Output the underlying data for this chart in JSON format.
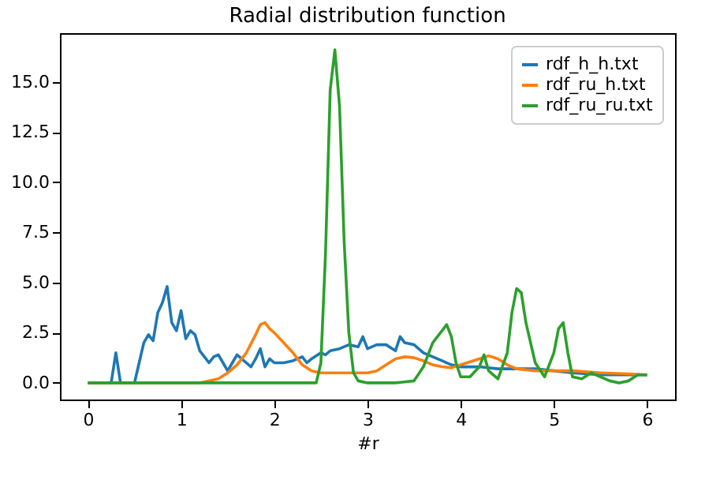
{
  "chart_data": {
    "type": "line",
    "title": "Radial distribution function",
    "xlabel": "#r",
    "xlim": [
      -0.3,
      6.3
    ],
    "ylim": [
      -0.83,
      17.43
    ],
    "xticks": [
      0,
      1,
      2,
      3,
      4,
      5,
      6
    ],
    "yticks": [
      {
        "value": 0,
        "label": "0.0"
      },
      {
        "value": 2.5,
        "label": "2.5"
      },
      {
        "value": 5,
        "label": "5.0"
      },
      {
        "value": 7.5,
        "label": "7.5"
      },
      {
        "value": 10,
        "label": "10.0"
      },
      {
        "value": 12.5,
        "label": "12.5"
      },
      {
        "value": 15,
        "label": "15.0"
      }
    ],
    "grid": false,
    "legend": "top right",
    "series": [
      {
        "name": "rdf_h_h.txt",
        "color": "#1f77b4",
        "x": [
          0,
          0.25,
          0.3,
          0.35,
          0.5,
          0.55,
          0.6,
          0.65,
          0.7,
          0.75,
          0.8,
          0.85,
          0.9,
          0.95,
          1.0,
          1.05,
          1.1,
          1.15,
          1.2,
          1.25,
          1.3,
          1.35,
          1.4,
          1.45,
          1.5,
          1.55,
          1.6,
          1.65,
          1.7,
          1.75,
          1.8,
          1.85,
          1.9,
          1.95,
          2.0,
          2.1,
          2.2,
          2.3,
          2.35,
          2.4,
          2.5,
          2.55,
          2.6,
          2.7,
          2.8,
          2.9,
          2.95,
          3.0,
          3.1,
          3.2,
          3.3,
          3.35,
          3.4,
          3.5,
          3.6,
          3.7,
          3.8,
          3.9,
          4.0,
          4.2,
          4.4,
          4.6,
          4.8,
          5.0,
          5.2,
          5.5,
          5.8,
          6.0
        ],
        "values": [
          0,
          0,
          1.5,
          0,
          0,
          1.0,
          2.0,
          2.4,
          2.1,
          3.5,
          4.0,
          4.8,
          3.0,
          2.6,
          3.6,
          2.2,
          2.6,
          2.4,
          1.6,
          1.3,
          1.0,
          1.3,
          1.4,
          1.0,
          0.6,
          1.0,
          1.4,
          1.2,
          1.0,
          0.8,
          1.2,
          1.7,
          0.8,
          1.2,
          1.0,
          1.0,
          1.1,
          1.3,
          1.0,
          1.2,
          1.5,
          1.4,
          1.6,
          1.7,
          1.9,
          1.8,
          2.3,
          1.7,
          1.9,
          1.9,
          1.6,
          2.3,
          2.0,
          1.9,
          1.5,
          1.3,
          1.1,
          0.9,
          0.8,
          0.8,
          0.7,
          0.7,
          0.7,
          0.6,
          0.5,
          0.4,
          0.4,
          0.4
        ]
      },
      {
        "name": "rdf_ru_h.txt",
        "color": "#ff7f0e",
        "x": [
          0,
          1.2,
          1.4,
          1.5,
          1.6,
          1.7,
          1.8,
          1.85,
          1.9,
          1.95,
          2.0,
          2.1,
          2.2,
          2.3,
          2.4,
          2.5,
          2.6,
          2.8,
          3.0,
          3.1,
          3.2,
          3.3,
          3.4,
          3.5,
          3.6,
          3.7,
          3.8,
          3.9,
          4.0,
          4.2,
          4.3,
          4.4,
          4.5,
          4.6,
          4.8,
          5.0,
          5.2,
          5.5,
          5.8,
          6.0
        ],
        "values": [
          0,
          0,
          0.2,
          0.5,
          0.9,
          1.5,
          2.4,
          2.9,
          3.0,
          2.7,
          2.5,
          2.0,
          1.5,
          0.9,
          0.6,
          0.5,
          0.5,
          0.5,
          0.5,
          0.6,
          0.9,
          1.2,
          1.3,
          1.25,
          1.1,
          0.9,
          0.8,
          0.75,
          0.9,
          1.2,
          1.35,
          1.2,
          0.9,
          0.7,
          0.6,
          0.6,
          0.6,
          0.5,
          0.45,
          0.4
        ]
      },
      {
        "name": "rdf_ru_ru.txt",
        "color": "#2ca02c",
        "x": [
          0,
          2.45,
          2.5,
          2.55,
          2.6,
          2.65,
          2.7,
          2.75,
          2.8,
          2.85,
          2.9,
          3.0,
          3.3,
          3.5,
          3.6,
          3.7,
          3.8,
          3.85,
          3.9,
          3.95,
          4.0,
          4.1,
          4.2,
          4.25,
          4.3,
          4.4,
          4.5,
          4.55,
          4.6,
          4.65,
          4.7,
          4.8,
          4.9,
          5.0,
          5.05,
          5.1,
          5.15,
          5.2,
          5.3,
          5.4,
          5.5,
          5.6,
          5.7,
          5.8,
          5.9,
          6.0
        ],
        "values": [
          0,
          0,
          1.0,
          6.5,
          14.6,
          16.6,
          13.8,
          7.0,
          2.5,
          0.5,
          0.1,
          0,
          0,
          0.1,
          0.8,
          2.0,
          2.6,
          2.9,
          2.3,
          1.0,
          0.3,
          0.3,
          0.8,
          1.4,
          0.6,
          0.2,
          1.5,
          3.5,
          4.7,
          4.5,
          3.0,
          1.0,
          0.3,
          1.5,
          2.7,
          3.0,
          1.5,
          0.3,
          0.2,
          0.5,
          0.3,
          0.1,
          0,
          0.1,
          0.4,
          0.4
        ]
      }
    ]
  }
}
